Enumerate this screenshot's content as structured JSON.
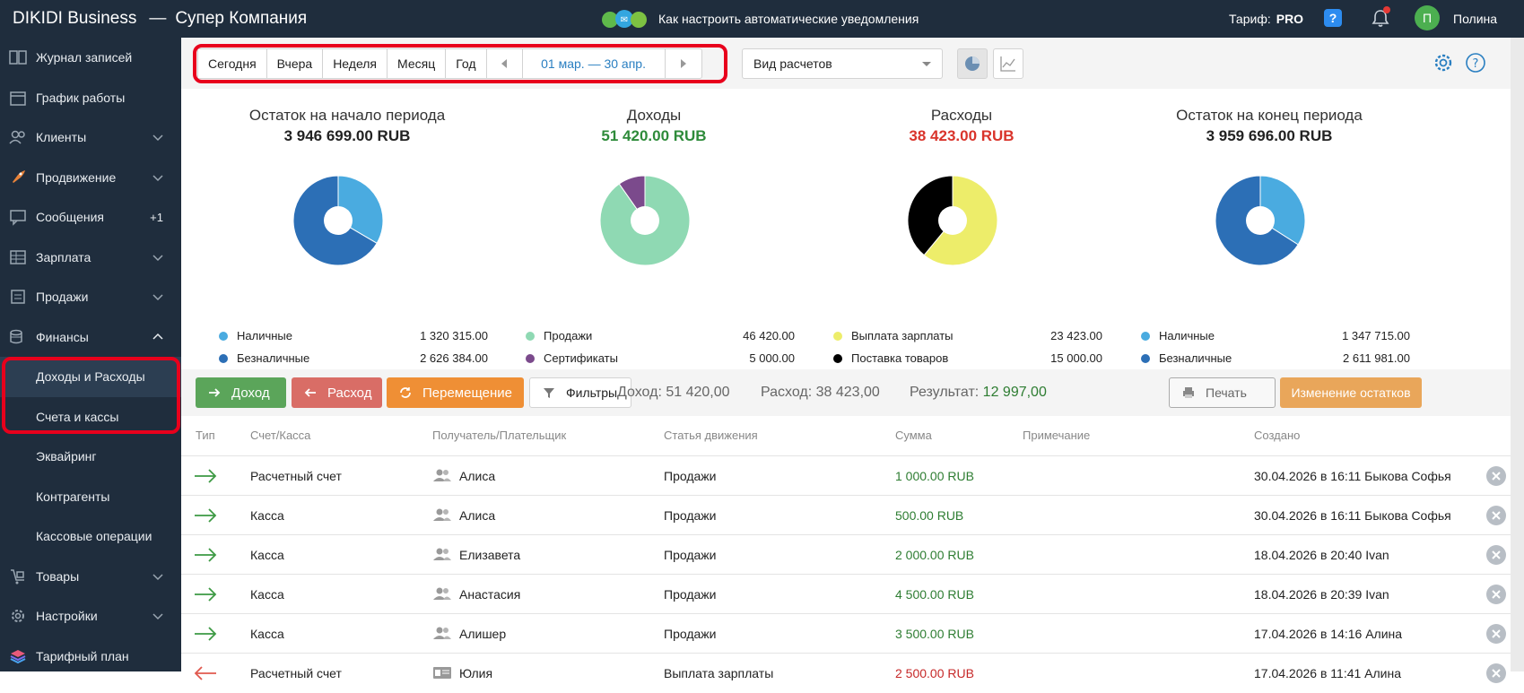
{
  "header": {
    "brand": "DIKIDI Business",
    "separator": "—",
    "company": "Супер Компания",
    "promo_text": "Как настроить автоматические уведомления",
    "tariff_label": "Тариф:",
    "tariff_value": "PRO",
    "help": "?",
    "avatar_letter": "П",
    "user_name": "Полина"
  },
  "sidebar": {
    "items": [
      {
        "label": "Журнал записей",
        "icon": "journal-icon"
      },
      {
        "label": "График работы",
        "icon": "calendar-icon"
      },
      {
        "label": "Клиенты",
        "icon": "clients-icon"
      },
      {
        "label": "Продвижение",
        "icon": "rocket-icon"
      },
      {
        "label": "Сообщения",
        "icon": "messages-icon",
        "badge": "+1"
      },
      {
        "label": "Зарплата",
        "icon": "salary-icon"
      },
      {
        "label": "Продажи",
        "icon": "sales-icon"
      },
      {
        "label": "Финансы",
        "icon": "finance-icon"
      }
    ],
    "sub_items": [
      "Доходы и Расходы",
      "Счета и кассы",
      "Эквайринг",
      "Контрагенты",
      "Кассовые операции"
    ],
    "bottom_items": [
      {
        "label": "Товары",
        "icon": "goods-icon"
      },
      {
        "label": "Настройки",
        "icon": "settings-icon"
      },
      {
        "label": "Тарифный план",
        "icon": "tariff-icon"
      }
    ]
  },
  "toolbar": {
    "periods": [
      "Сегодня",
      "Вчера",
      "Неделя",
      "Месяц",
      "Год"
    ],
    "range": "01 мар. — 30 апр.",
    "select_value": "Вид расчетов"
  },
  "summary": [
    {
      "title": "Остаток на начало периода",
      "value": "3 946 699.00 RUB",
      "color": "#222222",
      "legend": [
        {
          "name": "Наличные",
          "value": "1 320 315.00",
          "color": "#4aabe0"
        },
        {
          "name": "Безналичные",
          "value": "2 626 384.00",
          "color": "#2c6fb6"
        }
      ]
    },
    {
      "title": "Доходы",
      "value": "51 420.00 RUB",
      "color": "#2e8b3a",
      "legend": [
        {
          "name": "Продажи",
          "value": "46 420.00",
          "color": "#8fd9b3"
        },
        {
          "name": "Сертификаты",
          "value": "5 000.00",
          "color": "#7b4a8c"
        }
      ]
    },
    {
      "title": "Расходы",
      "value": "38 423.00 RUB",
      "color": "#d9342b",
      "legend": [
        {
          "name": "Выплата зарплаты",
          "value": "23 423.00",
          "color": "#eded6a"
        },
        {
          "name": "Поставка товаров",
          "value": "15 000.00",
          "color": "#000000"
        }
      ]
    },
    {
      "title": "Остаток на конец периода",
      "value": "3 959 696.00 RUB",
      "color": "#222222",
      "legend": [
        {
          "name": "Наличные",
          "value": "1 347 715.00",
          "color": "#4aabe0"
        },
        {
          "name": "Безналичные",
          "value": "2 611 981.00",
          "color": "#2c6fb6"
        }
      ]
    }
  ],
  "actions": {
    "income": "Доход",
    "expense": "Расход",
    "move": "Перемещение",
    "filters": "Фильтры",
    "income_total": "Доход: 51 420,00",
    "expense_total": "Расход: 38 423,00",
    "result_label": "Результат:",
    "result_value": "12 997,00",
    "print": "Печать",
    "change_balance": "Изменение остатков"
  },
  "table": {
    "columns": [
      "Тип",
      "Счет/Касса",
      "Получатель/Плательщик",
      "Статья движения",
      "Сумма",
      "Примечание",
      "Создано"
    ],
    "rows": [
      {
        "type": "in",
        "account": "Расчетный счет",
        "payer": "Алиса",
        "article": "Продажи",
        "sum": "1 000.00 RUB",
        "note": "",
        "created": "30.04.2026 в 16:11 Быкова Софья"
      },
      {
        "type": "in",
        "account": "Касса",
        "payer": "Алиса",
        "article": "Продажи",
        "sum": "500.00 RUB",
        "note": "",
        "created": "30.04.2026 в 16:11 Быкова Софья"
      },
      {
        "type": "in",
        "account": "Касса",
        "payer": "Елизавета",
        "article": "Продажи",
        "sum": "2 000.00 RUB",
        "note": "",
        "created": "18.04.2026 в 20:40 Ivan"
      },
      {
        "type": "in",
        "account": "Касса",
        "payer": "Анастасия",
        "article": "Продажи",
        "sum": "4 500.00 RUB",
        "note": "",
        "created": "18.04.2026 в 20:39 Ivan"
      },
      {
        "type": "in",
        "account": "Касса",
        "payer": "Алишер",
        "article": "Продажи",
        "sum": "3 500.00 RUB",
        "note": "",
        "created": "17.04.2026 в 14:16 Алина"
      },
      {
        "type": "out",
        "account": "Расчетный счет",
        "payer": "Юлия",
        "article": "Выплата зарплаты",
        "sum": "2 500.00 RUB",
        "note": "",
        "created": "17.04.2026 в 11:41 Алина"
      }
    ]
  }
}
